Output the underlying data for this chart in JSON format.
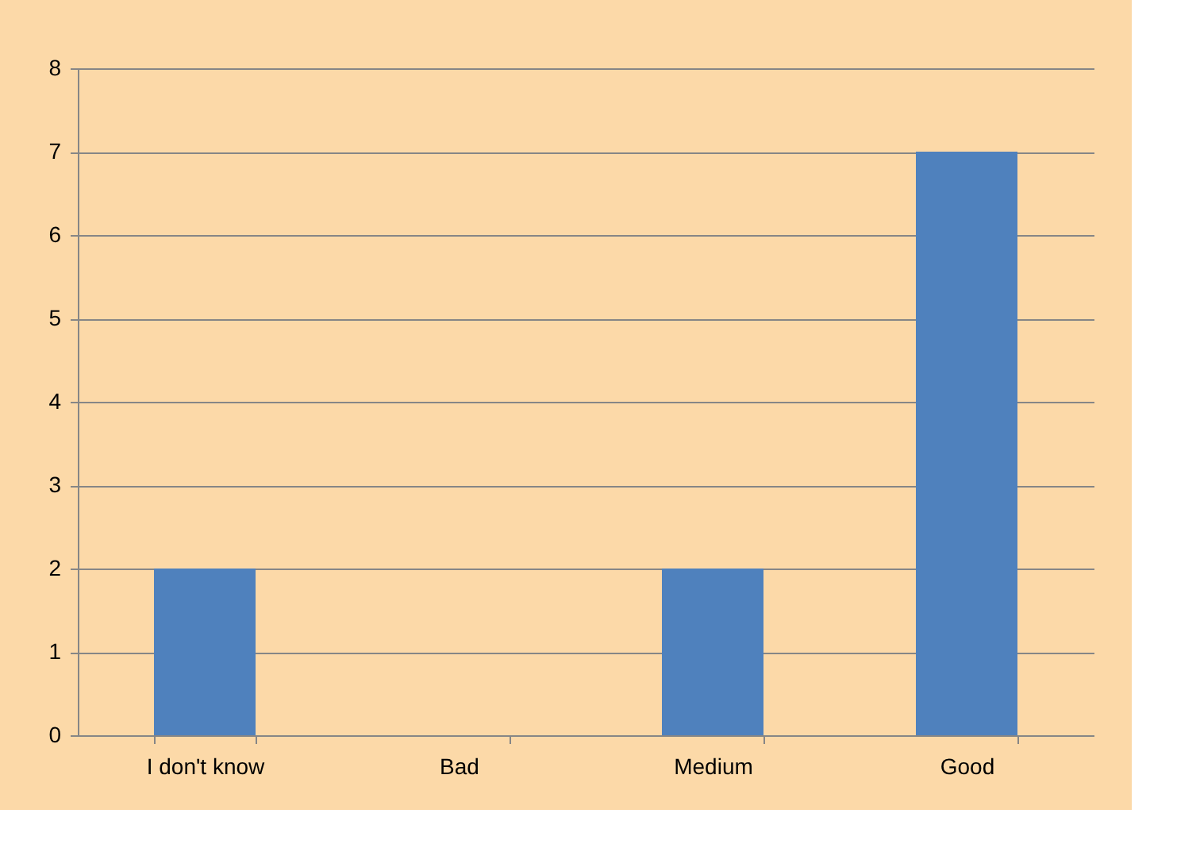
{
  "chart_data": {
    "type": "bar",
    "categories": [
      "I don't know",
      "Bad",
      "Medium",
      "Good"
    ],
    "values": [
      2,
      0,
      2,
      7
    ],
    "color": "#4f81bd",
    "ylim": [
      0,
      8
    ],
    "yticks": [
      0,
      1,
      2,
      3,
      4,
      5,
      6,
      7,
      8
    ],
    "grid": "y"
  }
}
